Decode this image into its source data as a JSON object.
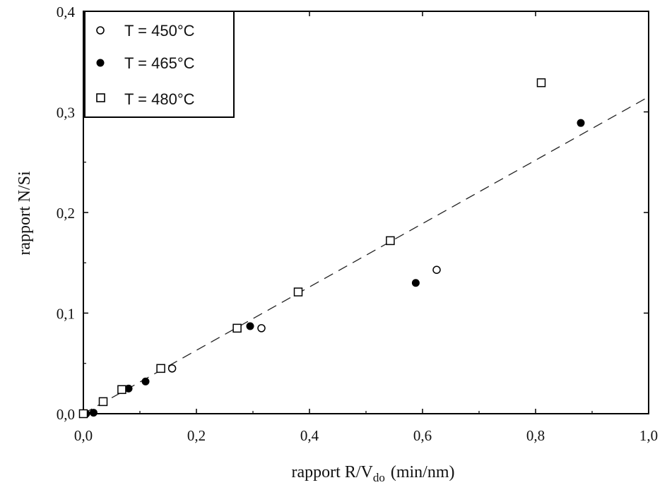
{
  "chart_data": {
    "type": "scatter",
    "xlabel": "rapport R/V",
    "xlabel_sub": "do",
    "xlabel_unit": "(min/nm)",
    "ylabel": "rapport N/Si",
    "xlim": [
      0.0,
      1.0
    ],
    "ylim": [
      0.0,
      0.4
    ],
    "x_ticks": [
      0.0,
      0.2,
      0.4,
      0.6,
      0.8,
      1.0
    ],
    "y_ticks": [
      0.0,
      0.1,
      0.2,
      0.3,
      0.4
    ],
    "x_tick_labels": [
      "0,0",
      "0,2",
      "0,4",
      "0,6",
      "0,8",
      "1,0"
    ],
    "y_tick_labels": [
      "0,0",
      "0,1",
      "0,2",
      "0,3",
      "0,4"
    ],
    "legend_position": "top-left",
    "grid": false,
    "series": [
      {
        "name": "T = 450°C",
        "marker": "open-circle",
        "x": [
          0.0,
          0.157,
          0.315,
          0.625
        ],
        "y": [
          0.0,
          0.045,
          0.085,
          0.143
        ]
      },
      {
        "name": "T = 465°C",
        "marker": "filled-circle",
        "x": [
          0.0,
          0.005,
          0.018,
          0.08,
          0.11,
          0.295,
          0.588,
          0.88
        ],
        "y": [
          0.0,
          0.0,
          0.001,
          0.025,
          0.032,
          0.087,
          0.13,
          0.289
        ]
      },
      {
        "name": "T = 480°C",
        "marker": "open-square",
        "x": [
          0.0,
          0.035,
          0.068,
          0.137,
          0.272,
          0.38,
          0.543,
          0.81
        ],
        "y": [
          0.0,
          0.012,
          0.024,
          0.045,
          0.085,
          0.121,
          0.172,
          0.329
        ]
      }
    ],
    "fit_line": {
      "style": "dashed",
      "slope": 0.315,
      "intercept": 0.0
    }
  }
}
